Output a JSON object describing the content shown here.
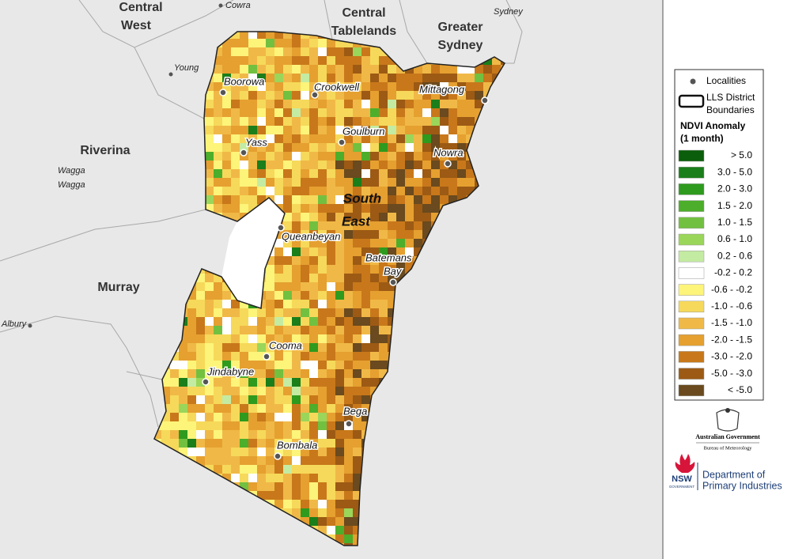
{
  "map": {
    "region_labels": [
      {
        "lines": [
          "Central",
          "West"
        ]
      },
      {
        "lines": [
          "Central",
          "Tablelands"
        ]
      },
      {
        "lines": [
          "Greater",
          "Sydney"
        ]
      },
      {
        "lines": [
          "Riverina"
        ]
      },
      {
        "lines": [
          "Murray"
        ]
      }
    ],
    "district_label": {
      "lines": [
        "South",
        "East"
      ]
    },
    "localities": [
      {
        "lines": [
          "Boorowa"
        ]
      },
      {
        "lines": [
          "Crookwell"
        ]
      },
      {
        "lines": [
          "Mittagong"
        ]
      },
      {
        "lines": [
          "Yass"
        ]
      },
      {
        "lines": [
          "Goulburn"
        ]
      },
      {
        "lines": [
          "Nowra"
        ]
      },
      {
        "lines": [
          "Queanbeyan"
        ]
      },
      {
        "lines": [
          "Batemans",
          "Bay"
        ]
      },
      {
        "lines": [
          "Cooma"
        ]
      },
      {
        "lines": [
          "Jindabyne"
        ]
      },
      {
        "lines": [
          "Bega"
        ]
      },
      {
        "lines": [
          "Bombala"
        ]
      }
    ],
    "other_places": [
      {
        "lines": [
          "Cowra"
        ]
      },
      {
        "lines": [
          "Sydney"
        ]
      },
      {
        "lines": [
          "Young"
        ]
      },
      {
        "lines": [
          "Wagga",
          "Wagga"
        ]
      },
      {
        "lines": [
          "Albury"
        ]
      }
    ]
  },
  "legend": {
    "localities": "Localities",
    "boundaries": [
      "LLS District",
      "Boundaries"
    ],
    "title": [
      "NDVI Anomaly",
      "(1 month)"
    ],
    "entries": [
      {
        "label": ">  5.0",
        "color": "#0b5e0b"
      },
      {
        "label": "3.0 -  5.0",
        "color": "#1a7e1a"
      },
      {
        "label": "2.0 -  3.0",
        "color": "#2e9a1e"
      },
      {
        "label": "1.5 -  2.0",
        "color": "#4cae2a"
      },
      {
        "label": "1.0 -  1.5",
        "color": "#72c040"
      },
      {
        "label": "0.6 -  1.0",
        "color": "#9ad65a"
      },
      {
        "label": "0.2 -  0.6",
        "color": "#c4eba2"
      },
      {
        "label": "-0.2 -  0.2",
        "color": "#ffffff"
      },
      {
        "label": "-0.6 - -0.2",
        "color": "#fdf47a"
      },
      {
        "label": "-1.0 - -0.6",
        "color": "#f6d95a"
      },
      {
        "label": "-1.5 - -1.0",
        "color": "#f0b947"
      },
      {
        "label": "-2.0 - -1.5",
        "color": "#e5a030"
      },
      {
        "label": "-3.0 - -2.0",
        "color": "#c8781a"
      },
      {
        "label": "-5.0 - -3.0",
        "color": "#9c5a14"
      },
      {
        "label": "< -5.0",
        "color": "#6a4a1e"
      }
    ]
  },
  "logos": {
    "aus_gov": [
      "Australian Government",
      "Bureau of Meteorology"
    ],
    "nsw": [
      "NSW",
      "GOVERNMENT"
    ],
    "dpi": [
      "Department of",
      "Primary Industries"
    ]
  }
}
